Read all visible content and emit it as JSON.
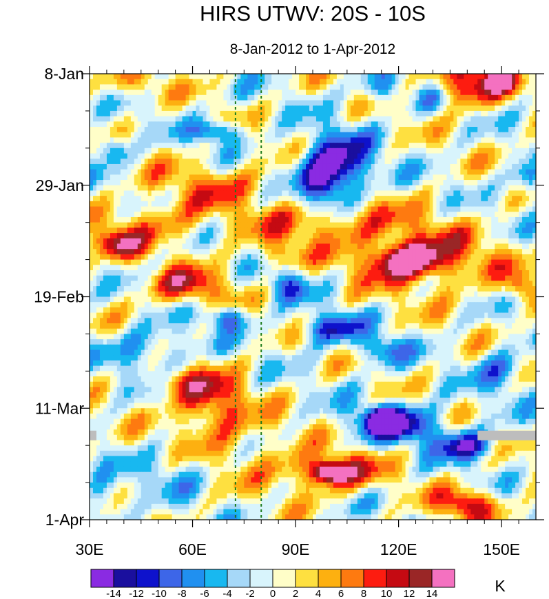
{
  "chart_data": {
    "type": "heatmap",
    "title": "HIRS UTWV: 20S - 10S",
    "subtitle": "8-Jan-2012 to 1-Apr-2012",
    "xlabel": "",
    "ylabel": "",
    "xlim": [
      30,
      160
    ],
    "ylim_days": [
      0,
      84
    ],
    "x_ticks": [
      {
        "value": 30,
        "label": "30E"
      },
      {
        "value": 60,
        "label": "60E"
      },
      {
        "value": 90,
        "label": "90E"
      },
      {
        "value": 120,
        "label": "120E"
      },
      {
        "value": 150,
        "label": "150E"
      }
    ],
    "y_ticks": [
      {
        "day": 0,
        "label": "8-Jan"
      },
      {
        "day": 21,
        "label": "29-Jan"
      },
      {
        "day": 42,
        "label": "19-Feb"
      },
      {
        "day": 63,
        "label": "11-Mar"
      },
      {
        "day": 84,
        "label": "1-Apr"
      }
    ],
    "reference_lines_lon": [
      72.5,
      80
    ],
    "colorbar": {
      "units": "K",
      "levels": [
        -14,
        -12,
        -10,
        -8,
        -6,
        -4,
        -2,
        0,
        2,
        4,
        6,
        8,
        10,
        12,
        14
      ],
      "labels": [
        "-14",
        "-12",
        "-10",
        "-8",
        "-6",
        "-4",
        "-2",
        "0",
        "2",
        "4",
        "6",
        "8",
        "10",
        "12",
        "14"
      ],
      "colors": [
        "#8a2be2",
        "#1a0f9e",
        "#0e12cc",
        "#3d66e8",
        "#2090f0",
        "#18b8f0",
        "#a6d8f8",
        "#d8f4fc",
        "#fffec8",
        "#fee040",
        "#fdb010",
        "#fe7a10",
        "#fd1c10",
        "#c50a12",
        "#9a2626",
        "#f471c0"
      ]
    },
    "anomaly_features": [
      {
        "lon": 140,
        "day": 2,
        "value": 12,
        "spread_lon": 7,
        "spread_day": 3
      },
      {
        "lon": 150,
        "day": 1,
        "value": 14,
        "spread_lon": 3,
        "spread_day": 1.5
      },
      {
        "lon": 42,
        "day": 2,
        "value": 5,
        "spread_lon": 7,
        "spread_day": 2
      },
      {
        "lon": 115,
        "day": 3,
        "value": -7,
        "spread_lon": 4,
        "spread_day": 2
      },
      {
        "lon": 130,
        "day": 5,
        "value": -5,
        "spread_lon": 3,
        "spread_day": 2
      },
      {
        "lon": 102,
        "day": 17,
        "value": -15,
        "spread_lon": 7,
        "spread_day": 4
      },
      {
        "lon": 98,
        "day": 21,
        "value": -9,
        "spread_lon": 5,
        "spread_day": 3
      },
      {
        "lon": 67,
        "day": 11,
        "value": -10,
        "spread_lon": 5,
        "spread_day": 1.5
      },
      {
        "lon": 37,
        "day": 14,
        "value": -9,
        "spread_lon": 3,
        "spread_day": 2
      },
      {
        "lon": 158,
        "day": 20,
        "value": -9,
        "spread_lon": 3,
        "spread_day": 2
      },
      {
        "lon": 67,
        "day": 21,
        "value": 6,
        "spread_lon": 13,
        "spread_day": 3
      },
      {
        "lon": 50,
        "day": 28,
        "value": 6,
        "spread_lon": 10,
        "spread_day": 3
      },
      {
        "lon": 38,
        "day": 32,
        "value": 11,
        "spread_lon": 5,
        "spread_day": 2
      },
      {
        "lon": 122,
        "day": 35,
        "value": 14,
        "spread_lon": 6,
        "spread_day": 2
      },
      {
        "lon": 128,
        "day": 35,
        "value": 10,
        "spread_lon": 14,
        "spread_day": 4
      },
      {
        "lon": 100,
        "day": 28,
        "value": 7,
        "spread_lon": 18,
        "spread_day": 3
      },
      {
        "lon": 58,
        "day": 40,
        "value": 10,
        "spread_lon": 8,
        "spread_day": 2.5
      },
      {
        "lon": 85,
        "day": 34,
        "value": 5,
        "spread_lon": 5,
        "spread_day": 2
      },
      {
        "lon": 88,
        "day": 40,
        "value": -8,
        "spread_lon": 4,
        "spread_day": 2
      },
      {
        "lon": 70,
        "day": 46,
        "value": -10,
        "spread_lon": 4,
        "spread_day": 1.5
      },
      {
        "lon": 100,
        "day": 48,
        "value": -11,
        "spread_lon": 6,
        "spread_day": 2
      },
      {
        "lon": 115,
        "day": 52,
        "value": -8,
        "spread_lon": 5,
        "spread_day": 2
      },
      {
        "lon": 48,
        "day": 52,
        "value": -7,
        "spread_lon": 8,
        "spread_day": 3
      },
      {
        "lon": 65,
        "day": 62,
        "value": 11,
        "spread_lon": 7,
        "spread_day": 4
      },
      {
        "lon": 55,
        "day": 58,
        "value": 6,
        "spread_lon": 6,
        "spread_day": 2
      },
      {
        "lon": 120,
        "day": 66,
        "value": -13,
        "spread_lon": 9,
        "spread_day": 2.5
      },
      {
        "lon": 115,
        "day": 65,
        "value": -15,
        "spread_lon": 3,
        "spread_day": 1.5
      },
      {
        "lon": 140,
        "day": 70,
        "value": -12,
        "spread_lon": 6,
        "spread_day": 2
      },
      {
        "lon": 100,
        "day": 75,
        "value": 12,
        "spread_lon": 10,
        "spread_day": 2.5
      },
      {
        "lon": 100,
        "day": 75,
        "value": 14,
        "spread_lon": 3,
        "spread_day": 1.2
      },
      {
        "lon": 140,
        "day": 81,
        "value": 12,
        "spread_lon": 6,
        "spread_day": 2
      },
      {
        "lon": 75,
        "day": 70,
        "value": 4,
        "spread_lon": 10,
        "spread_day": 4
      },
      {
        "lon": 150,
        "day": 56,
        "value": -7,
        "spread_lon": 5,
        "spread_day": 3
      },
      {
        "lon": 155,
        "day": 40,
        "value": 8,
        "spread_lon": 3,
        "spread_day": 2
      },
      {
        "lon": 35,
        "day": 80,
        "value": -6,
        "spread_lon": 4,
        "spread_day": 3
      },
      {
        "lon": 55,
        "day": 75,
        "value": -4,
        "spread_lon": 8,
        "spread_day": 3
      }
    ],
    "missing_data": [
      {
        "lon_from": 30,
        "lon_to": 32,
        "day": 68
      },
      {
        "lon_from": 143,
        "lon_to": 160,
        "day": 68
      }
    ]
  }
}
